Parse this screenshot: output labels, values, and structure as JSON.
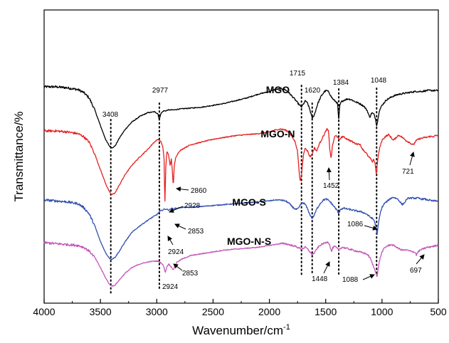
{
  "chart_data": {
    "type": "line",
    "xlabel": "Wavenumber/cm",
    "xlabel_sup": "-1",
    "ylabel": "Transmittance/%",
    "xlim": [
      4000,
      500
    ],
    "x_ticks": [
      "4000",
      "3500",
      "3000",
      "2500",
      "2000",
      "1500",
      "1000",
      "500"
    ],
    "y_ticks": false,
    "series": [
      {
        "name": "MGO",
        "color": "#000000",
        "label_at": 1925,
        "x": [
          4000,
          3900,
          3800,
          3700,
          3650,
          3600,
          3550,
          3500,
          3450,
          3420,
          3400,
          3370,
          3330,
          3280,
          3220,
          3150,
          3080,
          3020,
          2990,
          2977,
          2965,
          2940,
          2920,
          2900,
          2850,
          2800,
          2700,
          2600,
          2500,
          2400,
          2300,
          2200,
          2100,
          2000,
          1950,
          1900,
          1860,
          1830,
          1800,
          1770,
          1745,
          1730,
          1715,
          1700,
          1680,
          1660,
          1640,
          1620,
          1600,
          1570,
          1540,
          1510,
          1490,
          1470,
          1450,
          1430,
          1410,
          1395,
          1384,
          1375,
          1360,
          1330,
          1300,
          1270,
          1240,
          1200,
          1160,
          1130,
          1110,
          1090,
          1070,
          1055,
          1048,
          1040,
          1025,
          1000,
          960,
          900,
          850,
          800,
          750,
          700,
          650,
          600,
          550,
          500
        ],
        "y": [
          0.0,
          0.0,
          -1.0,
          -3.0,
          -6.0,
          -12.0,
          -25.0,
          -42.0,
          -58.0,
          -64.0,
          -66.0,
          -64.0,
          -55.0,
          -46.0,
          -38.0,
          -32.0,
          -28.0,
          -27.0,
          -29.0,
          -36.0,
          -29.0,
          -26.0,
          -26.0,
          -25.0,
          -25.0,
          -24.0,
          -23.0,
          -22.0,
          -20.0,
          -18.0,
          -15.0,
          -12.0,
          -8.0,
          -5.0,
          -3.0,
          -2.0,
          -3.0,
          -6.0,
          -10.0,
          -14.0,
          -18.0,
          -20.0,
          -22.0,
          -19.0,
          -15.0,
          -18.0,
          -25.0,
          -34.0,
          -30.0,
          -18.0,
          -10.0,
          -5.0,
          -4.0,
          -6.0,
          -11.0,
          -14.0,
          -16.0,
          -18.0,
          -36.0,
          -20.0,
          -16.0,
          -14.0,
          -13.0,
          -14.0,
          -16.0,
          -18.0,
          -21.0,
          -26.0,
          -33.0,
          -28.0,
          -30.0,
          -36.0,
          -42.0,
          -38.0,
          -26.0,
          -20.0,
          -14.0,
          -10.0,
          -8.0,
          -7.0,
          -6.0,
          -5.0,
          -5.0,
          -4.0,
          -4.0,
          -4.0
        ]
      },
      {
        "name": "MGO-N",
        "color": "#e32222",
        "label_at": 1925,
        "x": [
          4000,
          3900,
          3800,
          3700,
          3650,
          3600,
          3550,
          3500,
          3450,
          3420,
          3400,
          3370,
          3330,
          3280,
          3220,
          3150,
          3080,
          3030,
          2990,
          2977,
          2960,
          2945,
          2935,
          2928,
          2920,
          2910,
          2895,
          2880,
          2870,
          2860,
          2853,
          2845,
          2830,
          2800,
          2750,
          2700,
          2600,
          2500,
          2400,
          2300,
          2200,
          2100,
          2000,
          1950,
          1900,
          1860,
          1830,
          1800,
          1770,
          1750,
          1735,
          1725,
          1715,
          1705,
          1695,
          1680,
          1660,
          1640,
          1620,
          1600,
          1580,
          1560,
          1540,
          1510,
          1490,
          1475,
          1465,
          1452,
          1440,
          1420,
          1400,
          1384,
          1370,
          1350,
          1320,
          1290,
          1260,
          1230,
          1200,
          1170,
          1140,
          1120,
          1100,
          1088,
          1075,
          1060,
          1050,
          1045,
          1035,
          1020,
          1000,
          970,
          940,
          920,
          900,
          880,
          860,
          840,
          820,
          800,
          780,
          760,
          740,
          721,
          710,
          700,
          680,
          650,
          620,
          600,
          580,
          560,
          540,
          520,
          500
        ],
        "y": [
          0.0,
          0.0,
          -1.0,
          -3.0,
          -6.0,
          -12.0,
          -25.0,
          -42.0,
          -58.0,
          -66.0,
          -69.0,
          -67.0,
          -58.0,
          -47.0,
          -37.0,
          -28.0,
          -20.0,
          -13.0,
          -9.0,
          -10.0,
          -12.0,
          -18.0,
          -30.0,
          -80.0,
          -40.0,
          -22.0,
          -26.0,
          -38.0,
          -30.0,
          -46.0,
          -60.0,
          -38.0,
          -28.0,
          -22.0,
          -18.0,
          -15.0,
          -12.0,
          -9.0,
          -7.0,
          -5.0,
          -4.0,
          -3.0,
          -1.0,
          1.0,
          2.0,
          1.0,
          -1.0,
          -6.0,
          -12.0,
          -22.0,
          -45.0,
          -55.0,
          -48.0,
          -34.0,
          -24.0,
          -18.0,
          -22.0,
          -28.0,
          -25.0,
          -18.0,
          -22.0,
          -15.0,
          -10.0,
          -3.0,
          2.0,
          0.0,
          -18.0,
          -30.0,
          -16.0,
          -6.0,
          -5.0,
          -10.0,
          -8.0,
          -6.0,
          -8.0,
          -10.0,
          -12.0,
          -14.0,
          -14.0,
          -20.0,
          -24.0,
          -28.0,
          -30.0,
          -34.0,
          -30.0,
          -36.0,
          -48.0,
          -40.0,
          -28.0,
          -18.0,
          -10.0,
          -6.0,
          -4.0,
          -7.0,
          -10.0,
          -8.0,
          -5.0,
          -5.0,
          -7.0,
          -9.0,
          -11.0,
          -12.0,
          -14.0,
          -15.0,
          -13.0,
          -11.0,
          -9.0,
          -8.0,
          -7.0,
          -7.0,
          -6.0,
          -6.0,
          -6.0,
          -5.0,
          -5.0
        ]
      },
      {
        "name": "MGO-S",
        "color": "#3150b0",
        "label_at": 2180,
        "x": [
          4000,
          3900,
          3800,
          3700,
          3650,
          3600,
          3550,
          3500,
          3450,
          3420,
          3400,
          3370,
          3330,
          3280,
          3220,
          3150,
          3080,
          3030,
          3000,
          2985,
          2970,
          2950,
          2935,
          2924,
          2910,
          2895,
          2880,
          2865,
          2853,
          2840,
          2820,
          2780,
          2700,
          2600,
          2500,
          2400,
          2300,
          2200,
          2100,
          2000,
          1950,
          1900,
          1860,
          1830,
          1800,
          1770,
          1750,
          1735,
          1720,
          1700,
          1680,
          1660,
          1640,
          1620,
          1600,
          1580,
          1550,
          1520,
          1500,
          1480,
          1460,
          1440,
          1420,
          1400,
          1384,
          1370,
          1340,
          1300,
          1260,
          1220,
          1180,
          1140,
          1110,
          1086,
          1070,
          1060,
          1050,
          1045,
          1040,
          1030,
          1015,
          1000,
          980,
          960,
          940,
          920,
          900,
          880,
          860,
          840,
          820,
          800,
          780,
          760,
          740,
          720,
          700,
          680,
          650,
          620,
          600,
          580,
          560,
          540,
          520,
          500
        ],
        "y": [
          0.0,
          -1.0,
          -2.0,
          -4.0,
          -8.0,
          -15.0,
          -28.0,
          -45.0,
          -58.0,
          -63.0,
          -64.0,
          -62.0,
          -55.0,
          -45.0,
          -35.0,
          -28.0,
          -22.0,
          -18.0,
          -16.0,
          -14.0,
          -12.0,
          -11.0,
          -10.0,
          -10.0,
          -10.0,
          -11.0,
          -10.0,
          -9.0,
          -10.0,
          -9.0,
          -9.0,
          -8.0,
          -8.0,
          -7.0,
          -6.0,
          -5.0,
          -4.0,
          -3.0,
          -2.0,
          -1.0,
          0.0,
          0.0,
          -1.0,
          -3.0,
          -7.0,
          -10.0,
          -10.0,
          -8.0,
          -4.0,
          -3.0,
          -5.0,
          -10.0,
          -16.0,
          -20.0,
          -16.0,
          -10.0,
          -4.0,
          0.0,
          1.0,
          0.0,
          -2.0,
          -5.0,
          -8.0,
          -11.0,
          -15.0,
          -10.0,
          -9.0,
          -10.0,
          -11.0,
          -12.0,
          -13.0,
          -15.0,
          -18.0,
          -20.0,
          -22.0,
          -26.0,
          -32.0,
          -38.0,
          -34.0,
          -24.0,
          -14.0,
          -8.0,
          -4.0,
          -2.0,
          0.0,
          2.0,
          3.0,
          2.0,
          1.0,
          -2.0,
          -5.0,
          -3.0,
          1.0,
          2.0,
          2.0,
          2.0,
          2.0,
          2.0,
          1.0,
          1.0,
          0.0,
          0.0,
          -1.0,
          -1.0,
          -1.0,
          -1.0
        ]
      },
      {
        "name": "MGO-N-S",
        "color": "#c257b7",
        "label_at": 2180,
        "x": [
          4000,
          3900,
          3800,
          3700,
          3650,
          3600,
          3550,
          3500,
          3450,
          3420,
          3400,
          3370,
          3330,
          3280,
          3220,
          3150,
          3080,
          3030,
          2990,
          2975,
          2960,
          2945,
          2935,
          2924,
          2910,
          2895,
          2880,
          2865,
          2853,
          2840,
          2820,
          2780,
          2700,
          2600,
          2500,
          2400,
          2300,
          2200,
          2100,
          2000,
          1950,
          1900,
          1860,
          1830,
          1800,
          1770,
          1750,
          1730,
          1715,
          1700,
          1680,
          1660,
          1640,
          1620,
          1600,
          1580,
          1560,
          1540,
          1520,
          1500,
          1480,
          1465,
          1455,
          1448,
          1440,
          1420,
          1400,
          1384,
          1370,
          1350,
          1320,
          1290,
          1260,
          1230,
          1200,
          1170,
          1140,
          1120,
          1100,
          1088,
          1075,
          1060,
          1050,
          1045,
          1040,
          1030,
          1015,
          1000,
          980,
          960,
          940,
          920,
          900,
          880,
          860,
          840,
          820,
          800,
          780,
          760,
          740,
          720,
          700,
          697,
          690,
          680,
          660,
          640,
          620,
          600,
          580,
          560,
          540,
          520,
          500
        ],
        "y": [
          0.0,
          -1.0,
          -2.0,
          -3.0,
          -5.0,
          -9.0,
          -16.0,
          -27.0,
          -39.0,
          -45.0,
          -47.0,
          -46.0,
          -40.0,
          -33.0,
          -27.0,
          -23.0,
          -21.0,
          -20.0,
          -20.0,
          -21.0,
          -22.0,
          -24.0,
          -27.0,
          -32.0,
          -26.0,
          -23.0,
          -25.0,
          -27.0,
          -30.0,
          -25.0,
          -21.0,
          -18.0,
          -14.0,
          -12.0,
          -10.0,
          -8.0,
          -7.0,
          -6.0,
          -5.0,
          -3.0,
          -2.0,
          -1.0,
          -1.0,
          -2.0,
          -3.0,
          -4.0,
          -5.0,
          -6.0,
          -7.0,
          -6.0,
          -5.0,
          -7.0,
          -10.0,
          -13.0,
          -11.0,
          -7.0,
          -4.0,
          -2.0,
          -1.0,
          0.0,
          1.0,
          -2.0,
          -7.0,
          -10.0,
          -6.0,
          -4.0,
          -6.0,
          -8.0,
          -6.0,
          -5.0,
          -6.0,
          -7.0,
          -8.0,
          -9.0,
          -10.0,
          -11.0,
          -12.0,
          -14.0,
          -18.0,
          -22.0,
          -26.0,
          -30.0,
          -34.0,
          -38.0,
          -34.0,
          -24.0,
          -16.0,
          -10.0,
          -6.0,
          -4.0,
          -3.0,
          -2.0,
          -3.0,
          -4.0,
          -6.0,
          -7.0,
          -8.0,
          -8.0,
          -8.0,
          -9.0,
          -9.0,
          -10.0,
          -11.0,
          -14.0,
          -12.0,
          -10.0,
          -8.0,
          -7.0,
          -6.0,
          -5.0,
          -5.0,
          -4.0,
          -4.0,
          -3.0,
          -3.0
        ]
      }
    ],
    "vlines": [
      3408,
      2977,
      1715,
      1620,
      1384,
      1048
    ],
    "annotations": [
      {
        "text": "3408",
        "x": 3408
      },
      {
        "text": "2977",
        "x": 2977
      },
      {
        "text": "1715",
        "x": 1715
      },
      {
        "text": "1620",
        "x": 1620
      },
      {
        "text": "1384",
        "x": 1384
      },
      {
        "text": "1048",
        "x": 1048
      },
      {
        "text": "2860",
        "x": 2860
      },
      {
        "text": "2928",
        "x": 2928
      },
      {
        "text": "2853",
        "x": 2853
      },
      {
        "text": "2924",
        "x": 2924
      },
      {
        "text": "2853",
        "x": 2853
      },
      {
        "text": "2924",
        "x": 2924
      },
      {
        "text": "1452",
        "x": 1452
      },
      {
        "text": "721",
        "x": 721
      },
      {
        "text": "1086",
        "x": 1086
      },
      {
        "text": "1448",
        "x": 1448
      },
      {
        "text": "1088",
        "x": 1088
      },
      {
        "text": "697",
        "x": 697
      }
    ]
  }
}
